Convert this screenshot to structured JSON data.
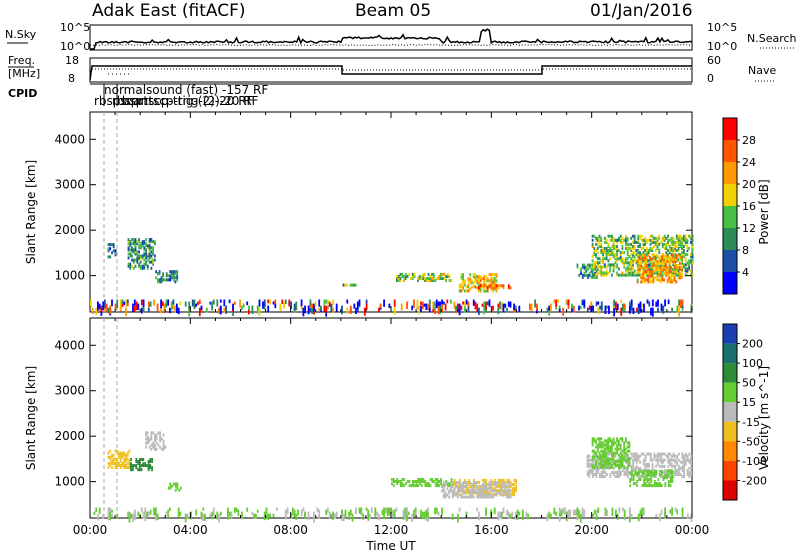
{
  "header": {
    "station": "Adak East (fitACF)",
    "beam": "Beam 05",
    "date": "01/Jan/2016"
  },
  "panels": {
    "nsky": {
      "label": "N.Sky",
      "right_label": "N.Search",
      "tick_top": "10^5",
      "tick_bottom": "10^0",
      "tick_top_r": "10^5",
      "tick_bottom_r": "10^0"
    },
    "freq": {
      "label1": "Freq.",
      "label2": "[MHz]",
      "right_label": "Nave",
      "tick_top": "18",
      "tick_bottom": "8",
      "tick_top_r": "60",
      "tick_bottom_r": "0"
    },
    "cpid": {
      "label": "CPID",
      "entries": [
        "normalsound (fast) -157 RF",
        "rbsprtscp-trig-(2)-20 RF",
        "rbsprtscp-trig-(2)-20 RF",
        "rbspscan"
      ]
    }
  },
  "chart_data": [
    {
      "type": "heatmap",
      "name": "power",
      "ylabel": "Slant Range [km]",
      "xlabel": "",
      "ylim": [
        200,
        4600
      ],
      "yticks": [
        "1000",
        "2000",
        "3000",
        "4000"
      ],
      "xlim": [
        0,
        24
      ],
      "colorbar": {
        "label": "Power [dB]",
        "ticks": [
          "4",
          "8",
          "12",
          "16",
          "20",
          "24",
          "28"
        ],
        "range": [
          0,
          30
        ],
        "colors": [
          "#0000ff",
          "#1a4fa8",
          "#2e8b57",
          "#48c048",
          "#f0d000",
          "#ff9900",
          "#ff5500",
          "#ff0000"
        ]
      },
      "clusters": [
        {
          "t": [
            0.7,
            1.0
          ],
          "r": [
            1400,
            1700
          ],
          "v": 8
        },
        {
          "t": [
            1.5,
            2.6
          ],
          "r": [
            1150,
            1800
          ],
          "v": 10
        },
        {
          "t": [
            2.6,
            3.5
          ],
          "r": [
            850,
            1100
          ],
          "v": 9
        },
        {
          "t": [
            10.0,
            10.6
          ],
          "r": [
            780,
            820
          ],
          "v": 10
        },
        {
          "t": [
            12.2,
            14.4
          ],
          "r": [
            880,
            1050
          ],
          "v": 14
        },
        {
          "t": [
            14.7,
            16.2
          ],
          "r": [
            650,
            1050
          ],
          "v": 18
        },
        {
          "t": [
            15.4,
            16.8
          ],
          "r": [
            720,
            800
          ],
          "v": 22
        },
        {
          "t": [
            19.4,
            20.2
          ],
          "r": [
            950,
            1250
          ],
          "v": 9
        },
        {
          "t": [
            20.0,
            24.0
          ],
          "r": [
            1000,
            1900
          ],
          "v": 13
        },
        {
          "t": [
            21.8,
            23.6
          ],
          "r": [
            850,
            1450
          ],
          "v": 20
        },
        {
          "t": [
            0.0,
            24.0
          ],
          "r": [
            250,
            450
          ],
          "v": 10
        }
      ]
    },
    {
      "type": "heatmap",
      "name": "velocity",
      "ylabel": "Slant Range [km]",
      "xlabel": "Time UT",
      "ylim": [
        200,
        4600
      ],
      "yticks": [
        "1000",
        "2000",
        "3000",
        "4000"
      ],
      "xlim": [
        0,
        24
      ],
      "xticks": [
        "00:00",
        "04:00",
        "08:00",
        "12:00",
        "16:00",
        "20:00",
        "00:00"
      ],
      "colorbar": {
        "label": "Velocity [m s^-1]",
        "ticks": [
          "200",
          "100",
          "50",
          "15",
          "-15",
          "-50",
          "-100",
          "-200"
        ],
        "colors": [
          "#1a3fb0",
          "#1a6e6e",
          "#2e8b3a",
          "#66cc33",
          "#bbbbbb",
          "#f0c020",
          "#ff8800",
          "#ff4400",
          "#dd0000"
        ]
      },
      "clusters": [
        {
          "t": [
            0.7,
            1.6
          ],
          "r": [
            1300,
            1700
          ],
          "v": -40
        },
        {
          "t": [
            1.6,
            2.5
          ],
          "r": [
            1250,
            1500
          ],
          "v": 60
        },
        {
          "t": [
            2.2,
            3.0
          ],
          "r": [
            1700,
            2100
          ],
          "v": 0
        },
        {
          "t": [
            3.1,
            3.6
          ],
          "r": [
            800,
            950
          ],
          "v": 30
        },
        {
          "t": [
            12.0,
            14.5
          ],
          "r": [
            900,
            1050
          ],
          "v": 30
        },
        {
          "t": [
            14.5,
            17.0
          ],
          "r": [
            700,
            1050
          ],
          "v": -30
        },
        {
          "t": [
            14.0,
            16.8
          ],
          "r": [
            650,
            1000
          ],
          "v": 0
        },
        {
          "t": [
            19.8,
            24.0
          ],
          "r": [
            1100,
            1600
          ],
          "v": 0
        },
        {
          "t": [
            20.0,
            21.5
          ],
          "r": [
            1300,
            1950
          ],
          "v": 25
        },
        {
          "t": [
            21.5,
            23.2
          ],
          "r": [
            900,
            1250
          ],
          "v": 25
        },
        {
          "t": [
            0.0,
            24.0
          ],
          "r": [
            250,
            400
          ],
          "v": 20
        }
      ]
    }
  ]
}
